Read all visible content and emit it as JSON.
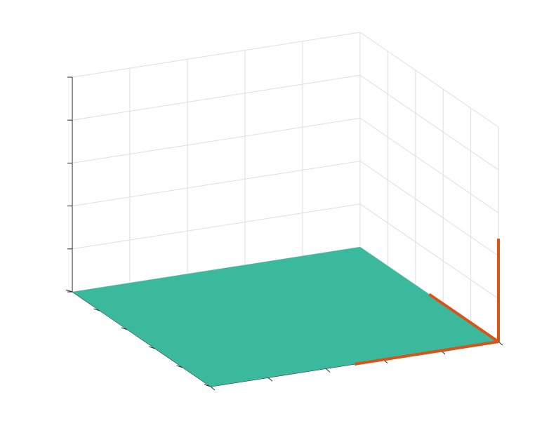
{
  "chart_data": {
    "type": "surface3d",
    "title": "",
    "xlabel": "",
    "ylabel": "",
    "zlabel": "",
    "grid": true,
    "tick_labels_shown": false,
    "xlim": [
      0,
      5
    ],
    "ylim": [
      0,
      5
    ],
    "zlim": [
      0,
      5
    ],
    "surface": {
      "name": "",
      "z": 0,
      "color": "#3bb99d"
    },
    "segments": [
      {
        "name": "",
        "from": [
          2.5,
          5,
          0
        ],
        "to": [
          5,
          5,
          0
        ],
        "color": "#d95319"
      },
      {
        "name": "",
        "from": [
          5,
          5,
          0
        ],
        "to": [
          5,
          2.5,
          0
        ],
        "color": "#d95319"
      },
      {
        "name": "",
        "from": [
          5,
          5,
          0
        ],
        "to": [
          5,
          5,
          2.4
        ],
        "color": "#d95319"
      }
    ]
  },
  "colors": {
    "background": "#ffffff",
    "grid": "#dedede",
    "axis": "#262626"
  }
}
